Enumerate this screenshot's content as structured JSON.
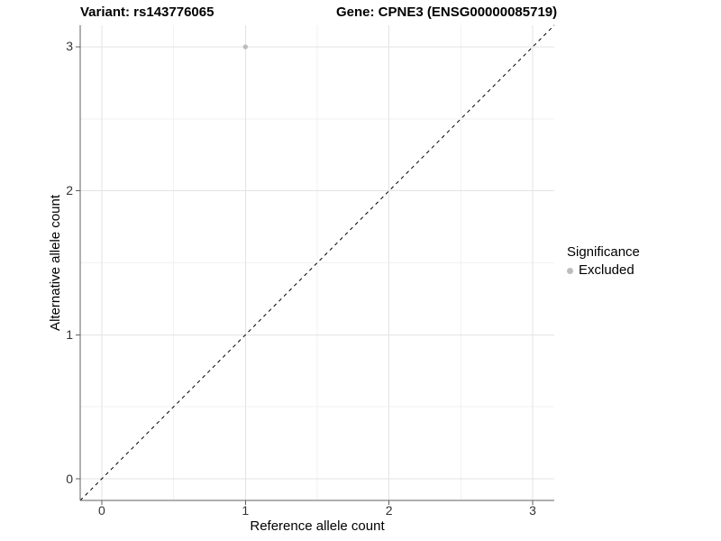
{
  "titles": {
    "variant": "Variant: rs143776065",
    "gene": "Gene: CPNE3 (ENSG00000085719)"
  },
  "axes": {
    "x": {
      "label": "Reference allele count",
      "ticks": [
        "0",
        "1",
        "2",
        "3"
      ]
    },
    "y": {
      "label": "Alternative allele count",
      "ticks": [
        "0",
        "1",
        "2",
        "3"
      ]
    }
  },
  "legend": {
    "title": "Significance",
    "items": [
      {
        "label": "Excluded",
        "color": "#bdbdbd"
      }
    ]
  },
  "colors": {
    "background": "#ffffff",
    "grid_major": "#e3e3e3",
    "grid_minor": "#f2f2f2",
    "axis_line": "#606060",
    "tick_mark": "#606060",
    "tick_label": "#333333",
    "dashed_line": "#000000",
    "point": "#bdbdbd"
  },
  "chart_data": {
    "type": "scatter",
    "title": "Variant: rs143776065 — Gene: CPNE3 (ENSG00000085719)",
    "xlabel": "Reference allele count",
    "ylabel": "Alternative allele count",
    "xlim": [
      -0.15,
      3.15
    ],
    "ylim": [
      -0.15,
      3.15
    ],
    "x_ticks": [
      0,
      1,
      2,
      3
    ],
    "y_ticks": [
      0,
      1,
      2,
      3
    ],
    "x_minor": [
      0.5,
      1.5,
      2.5
    ],
    "y_minor": [
      0.5,
      1.5,
      2.5
    ],
    "grid": "major+minor",
    "legend_position": "right",
    "series": [
      {
        "name": "Excluded",
        "color": "#bdbdbd",
        "points": [
          {
            "x": 1,
            "y": 3
          }
        ]
      }
    ],
    "reference_line": {
      "type": "identity y=x",
      "style": "dashed",
      "from": [
        -0.15,
        -0.15
      ],
      "to": [
        3.15,
        3.15
      ]
    }
  }
}
